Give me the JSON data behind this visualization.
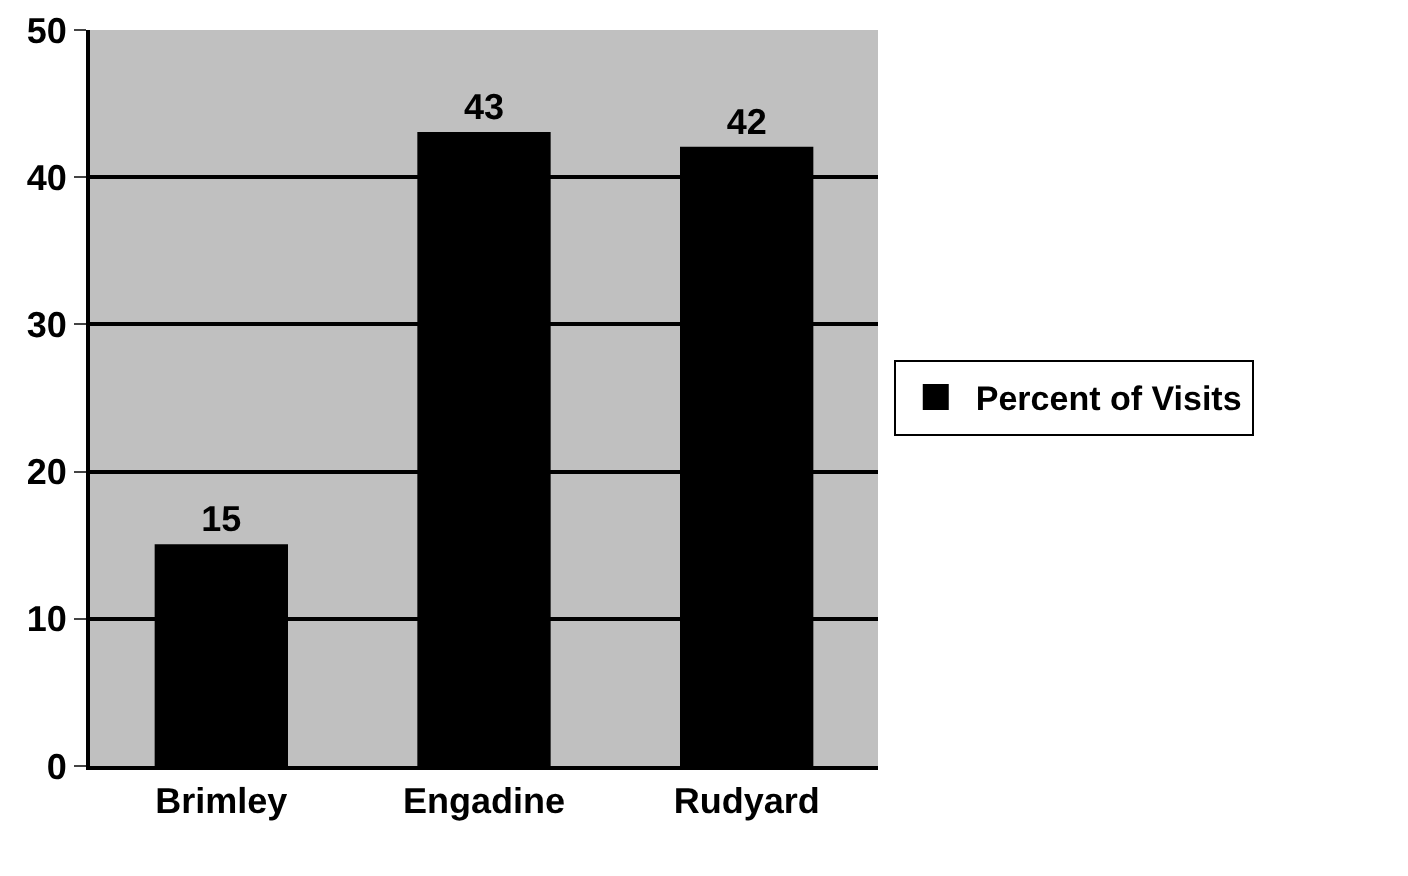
{
  "chart_data": {
    "type": "bar",
    "categories": [
      "Brimley",
      "Engadine",
      "Rudyard"
    ],
    "series": [
      {
        "name": "Percent of Visits",
        "color": "#000000",
        "values": [
          15,
          43,
          42
        ]
      }
    ],
    "ylim": [
      0,
      50
    ],
    "yticks": [
      0,
      10,
      20,
      30,
      40,
      50
    ],
    "grid": "y",
    "legend": "right",
    "data_labels": true
  }
}
